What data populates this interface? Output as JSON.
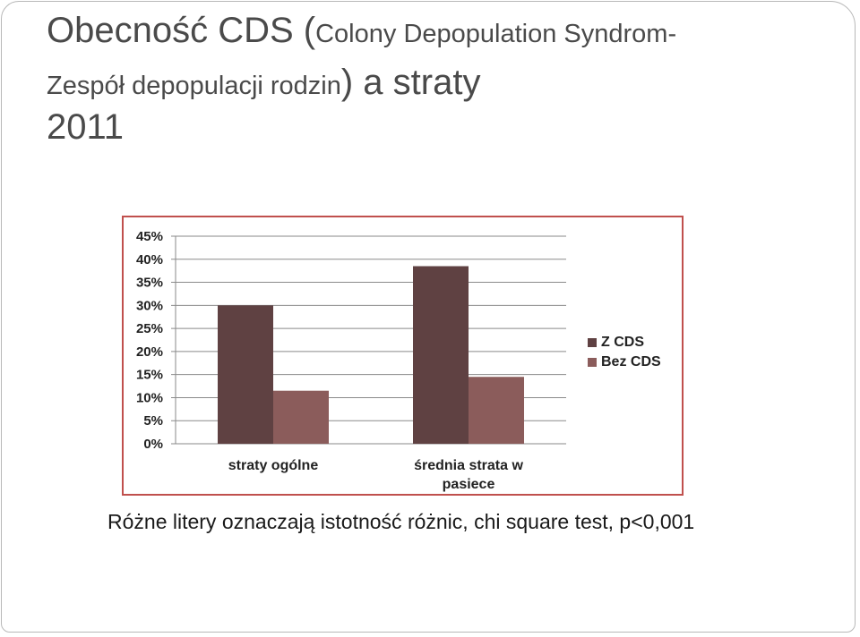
{
  "slide": {
    "title_part1": "Obecność CDS (",
    "title_part2": "Colony Depopulation Syndrom-",
    "title_part3": "Zespół depopulacji rodzin",
    "title_part4": ") a straty",
    "title_part5": "2011",
    "footnote": "Różne litery oznaczają istotność różnic, chi square test, p<0,001"
  },
  "chart_data": {
    "type": "bar",
    "categories": [
      "straty ogólne",
      "średnia strata w pasiece"
    ],
    "category_lines": [
      [
        "straty ogólne"
      ],
      [
        "średnia strata w",
        "pasiece"
      ]
    ],
    "series": [
      {
        "name": "Z CDS",
        "color": "#5f4142",
        "values": [
          30,
          38.5
        ]
      },
      {
        "name": "Bez CDS",
        "color": "#8b5c5b",
        "values": [
          11.5,
          14.5
        ]
      }
    ],
    "ylim": [
      0,
      45
    ],
    "yticks": [
      "0%",
      "5%",
      "10%",
      "15%",
      "20%",
      "25%",
      "30%",
      "35%",
      "40%",
      "45%"
    ],
    "grid": true,
    "legend": "right",
    "frame_color": "#c0504d"
  }
}
